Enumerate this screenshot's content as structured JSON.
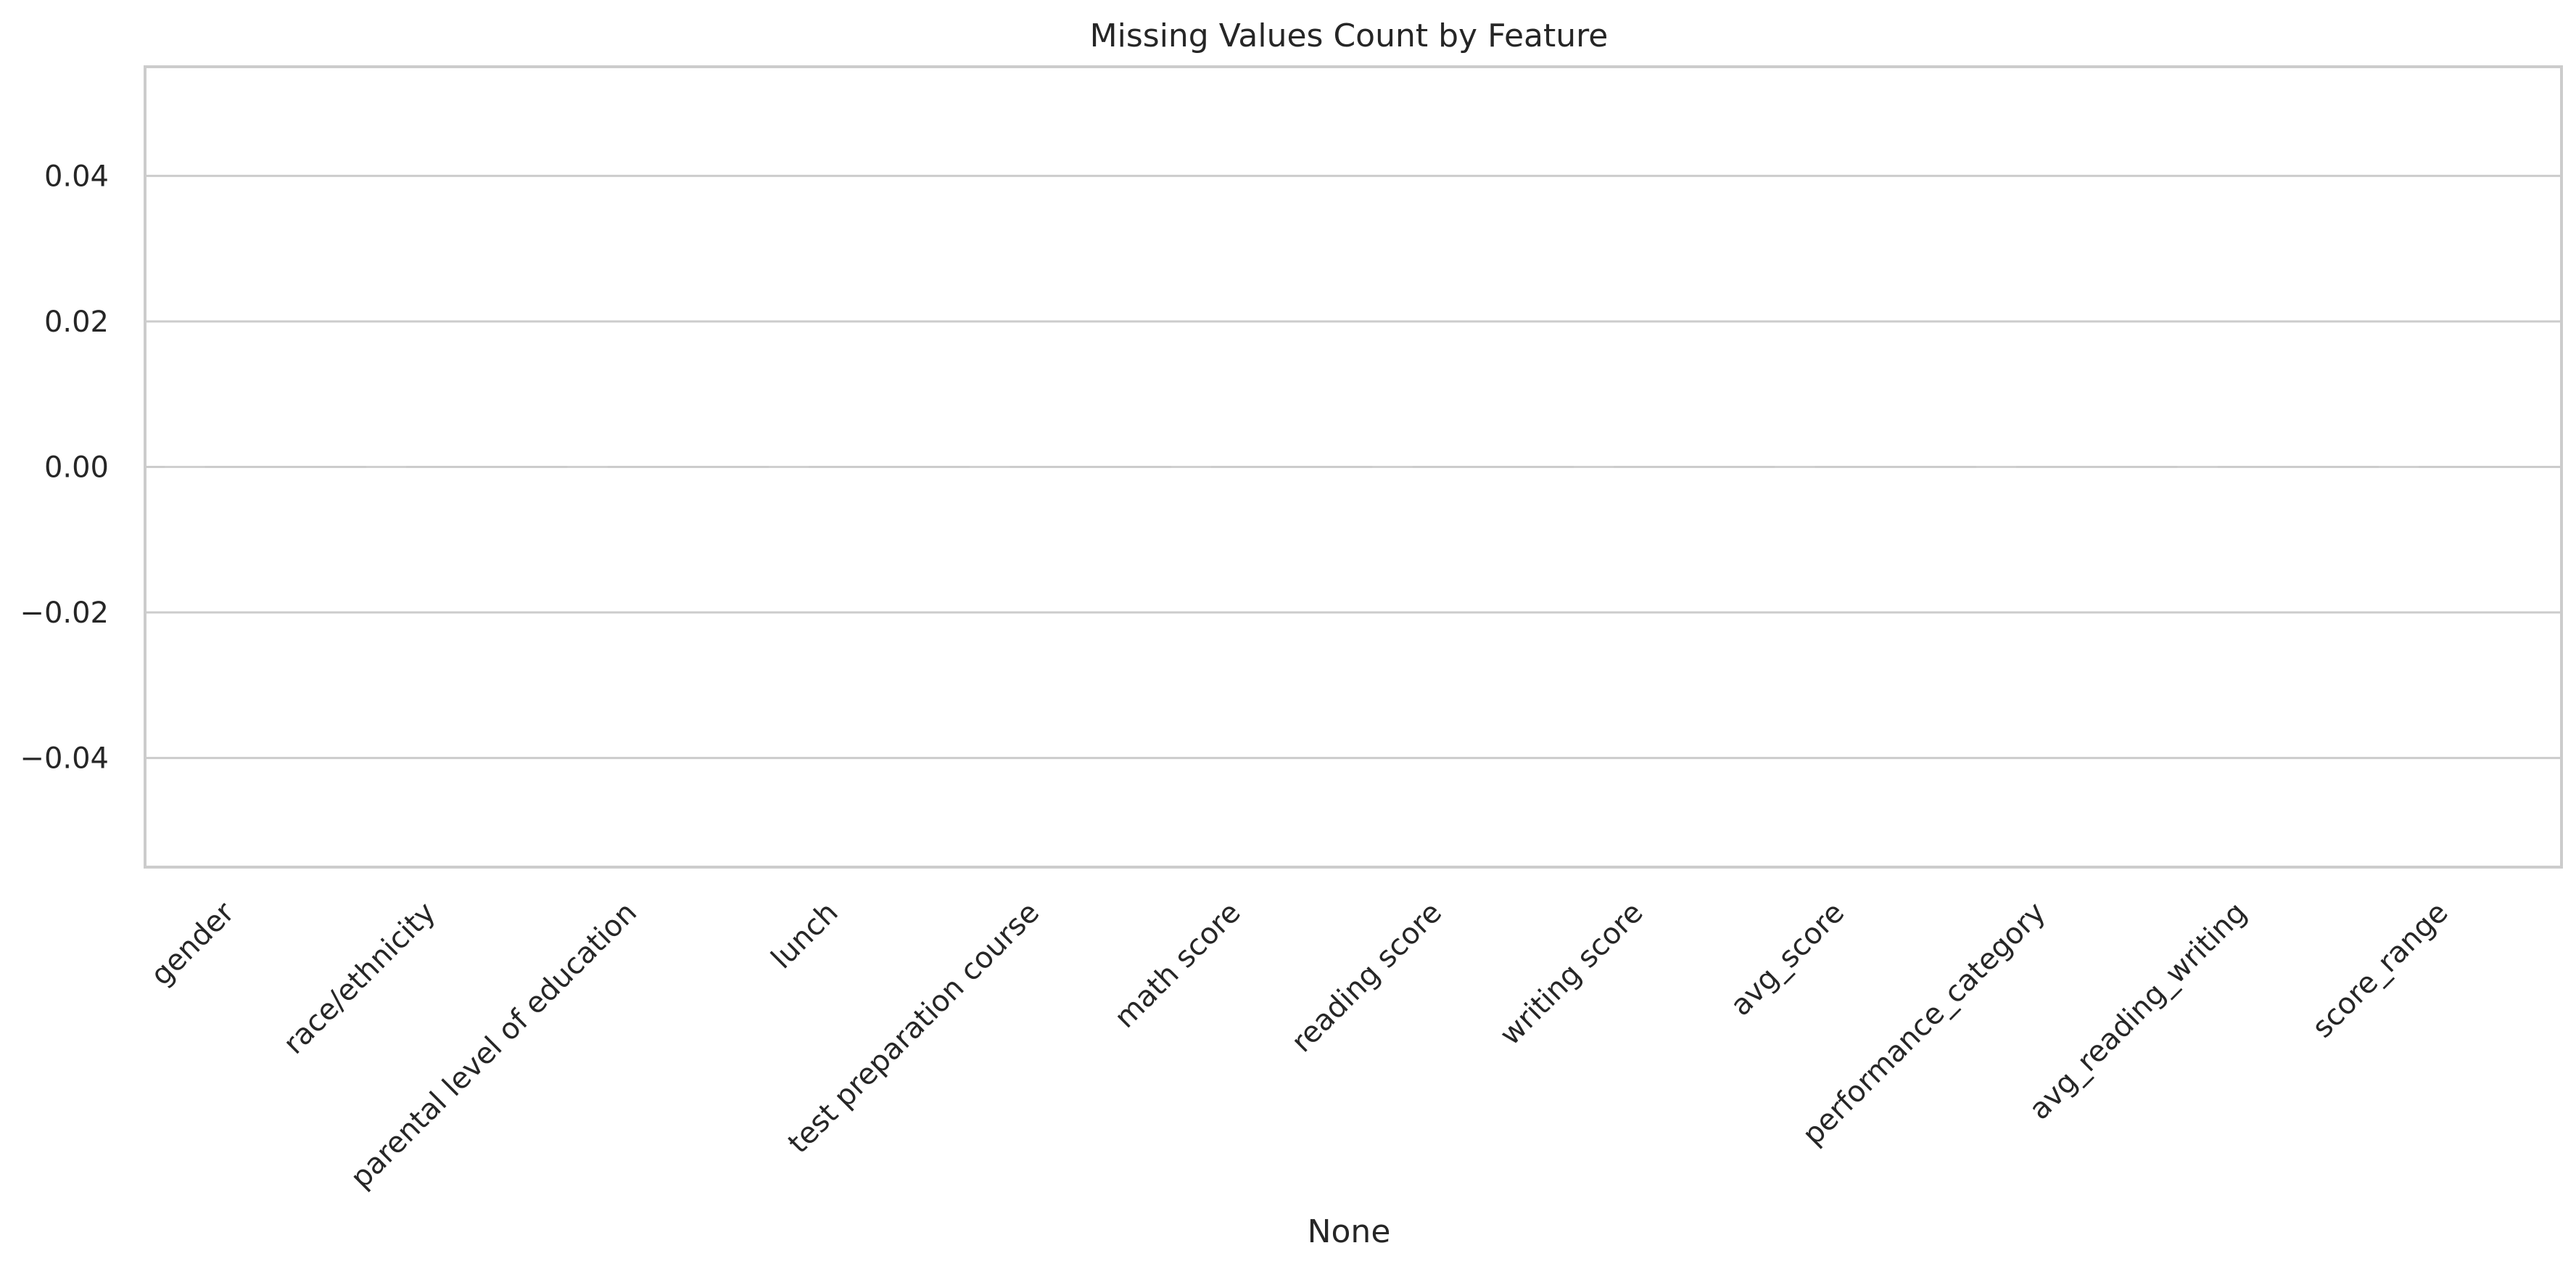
{
  "chart_data": {
    "type": "bar",
    "title": "Missing Values Count by Feature",
    "xlabel": "None",
    "ylabel": "",
    "categories": [
      "gender",
      "race/ethnicity",
      "parental level of education",
      "lunch",
      "test preparation course",
      "math score",
      "reading score",
      "writing score",
      "avg_score",
      "performance_category",
      "avg_reading_writing",
      "score_range"
    ],
    "values": [
      0,
      0,
      0,
      0,
      0,
      0,
      0,
      0,
      0,
      0,
      0,
      0
    ],
    "ylim": [
      -0.055,
      0.055
    ],
    "yticks": [
      -0.04,
      -0.02,
      0.0,
      0.02,
      0.04
    ],
    "ytick_labels": [
      "−0.04",
      "−0.02",
      "0.00",
      "0.02",
      "0.04"
    ],
    "grid": true,
    "bar_color": "#cfcfcf"
  }
}
